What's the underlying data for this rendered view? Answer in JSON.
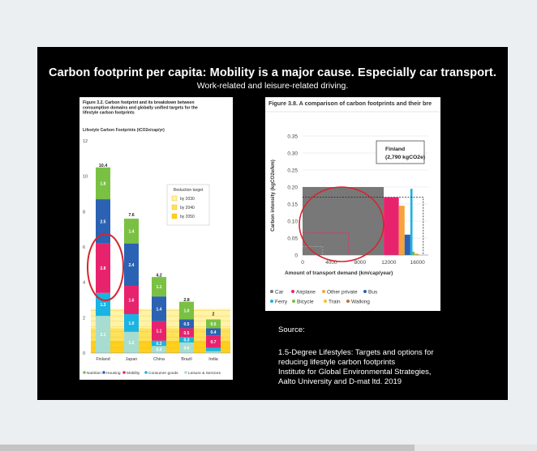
{
  "slide": {
    "title": "Carbon footprint per capita: Mobility is a major cause. Especially car transport.",
    "subtitle": "Work-related and leisure-related driving."
  },
  "source": {
    "label": "Source:",
    "lines": [
      "1.5-Degree Lifestyles: Targets and options for",
      "reducing lifestyle carbon footprints",
      "Institute for Global Environmental Strategies,",
      "Aalto University and D-mat ltd. 2019"
    ]
  },
  "colors": {
    "nutrition": "#7ac143",
    "housing": "#2b62b3",
    "mobility": "#e8236d",
    "consumer_goods": "#19b4e3",
    "leisure": "#a6ddd0",
    "highlight_circle": "#d6252f"
  },
  "chart_data": [
    {
      "type": "bar",
      "figure_label": "Figure 3.2. Carbon footprint and its breakdown between consumption domains and globally unified targets for the lifestyle carbon footprints",
      "ylabel": "Lifestyle Carbon Footprints (tCO2e/cap/yr)",
      "ylim": [
        0,
        12
      ],
      "yticks": [
        0,
        2,
        4,
        6,
        8,
        10,
        12
      ],
      "categories": [
        "Finland",
        "Japan",
        "China",
        "Brazil",
        "India"
      ],
      "totals": [
        10.4,
        7.6,
        4.2,
        2.8,
        2.0
      ],
      "series": [
        {
          "name": "Leisure & Services",
          "color": "#a6ddd0",
          "values": [
            2.1,
            1.2,
            0.4,
            0.6,
            0.1
          ]
        },
        {
          "name": "Consumer goods",
          "color": "#19b4e3",
          "values": [
            1.3,
            1.0,
            0.3,
            0.3,
            0.2
          ]
        },
        {
          "name": "Mobility",
          "color": "#e8236d",
          "values": [
            2.8,
            1.6,
            1.1,
            0.5,
            0.7
          ]
        },
        {
          "name": "Housing",
          "color": "#2b62b3",
          "values": [
            2.5,
            2.4,
            1.4,
            0.5,
            0.4
          ]
        },
        {
          "name": "Nutrition",
          "color": "#7ac143",
          "values": [
            1.8,
            1.4,
            1.1,
            1.0,
            0.5
          ]
        }
      ],
      "reduction_target": {
        "title": "Reduction target",
        "entries": [
          {
            "label": "by 2030",
            "value": 2.5,
            "color": "#fff3a8"
          },
          {
            "label": "by 2040",
            "value": 1.4,
            "color": "#ffe15a"
          },
          {
            "label": "by 2050",
            "value": 0.7,
            "color": "#ffcf1e"
          }
        ]
      },
      "legend_position": "bottom",
      "highlight": "Finland Mobility"
    },
    {
      "type": "area",
      "figure_label": "Figure 3.8. A comparison of carbon footprints and their bre",
      "xlabel": "Amount of transport demand (km/cap/year)",
      "ylabel": "Carbon intensity (kgCO2e/km)",
      "xlim": [
        0,
        17500
      ],
      "ylim": [
        0,
        0.35
      ],
      "xticks": [
        0,
        4000,
        8000,
        12000,
        16000
      ],
      "yticks": [
        0,
        0.05,
        0.1,
        0.15,
        0.2,
        0.25,
        0.3,
        0.35
      ],
      "annotation": {
        "line1": "Finland",
        "line2": "(2,790 kgCO2e)"
      },
      "blocks": [
        {
          "name": "Car",
          "color": "#787878",
          "x0": 0,
          "x1": 11300,
          "y": 0.2
        },
        {
          "name": "Airplane",
          "color": "#e8236d",
          "x0": 11300,
          "x1": 13400,
          "y": 0.17
        },
        {
          "name": "Other private",
          "color": "#f7a33d",
          "x0": 13400,
          "x1": 14200,
          "y": 0.145
        },
        {
          "name": "Bus",
          "color": "#2b62b3",
          "x0": 14200,
          "x1": 15000,
          "y": 0.06
        },
        {
          "name": "Ferry",
          "color": "#19b4e3",
          "x0": 15000,
          "x1": 15300,
          "y": 0.195
        },
        {
          "name": "Bicycle",
          "color": "#7ac143",
          "x0": 15300,
          "x1": 15600,
          "y": 0.01
        },
        {
          "name": "Train",
          "color": "#f7c32e",
          "x0": 15600,
          "x1": 15900,
          "y": 0.005
        },
        {
          "name": "Walking",
          "color": "#c0713a",
          "x0": 15900,
          "x1": 16100,
          "y": 0.003
        }
      ],
      "targets": [
        {
          "style": "dashed-black",
          "x": 16800,
          "y": 0.17
        },
        {
          "style": "dashed-pink",
          "x": 6400,
          "y": 0.065
        },
        {
          "style": "dashed-gray",
          "x": 2800,
          "y": 0.025
        }
      ],
      "legend_position": "bottom",
      "highlight": "Car"
    }
  ]
}
